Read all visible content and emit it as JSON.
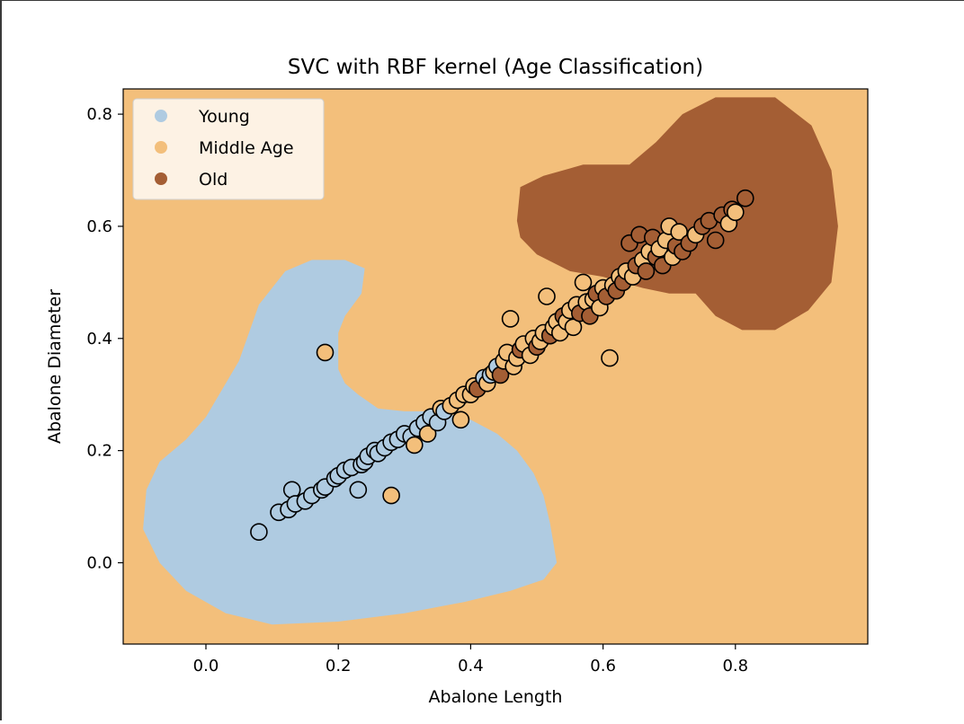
{
  "chart_data": {
    "type": "scatter",
    "title": "SVC with RBF kernel (Age Classification)",
    "xlabel": "Abalone Length",
    "ylabel": "Abalone Diameter",
    "xlim": [
      -0.125,
      1.0
    ],
    "ylim": [
      -0.145,
      0.845
    ],
    "xticks": [
      {
        "value": 0.0,
        "label": "0.0"
      },
      {
        "value": 0.2,
        "label": "0.2"
      },
      {
        "value": 0.4,
        "label": "0.4"
      },
      {
        "value": 0.6,
        "label": "0.6"
      },
      {
        "value": 0.8,
        "label": "0.8"
      }
    ],
    "yticks": [
      {
        "value": 0.0,
        "label": "0.0"
      },
      {
        "value": 0.2,
        "label": "0.2"
      },
      {
        "value": 0.4,
        "label": "0.4"
      },
      {
        "value": 0.6,
        "label": "0.6"
      },
      {
        "value": 0.8,
        "label": "0.8"
      }
    ],
    "grid": false,
    "legend_position": "top-left",
    "classes": [
      {
        "name": "Young",
        "color": "#afcbe1"
      },
      {
        "name": "Middle Age",
        "color": "#f3bf7b"
      },
      {
        "name": "Old",
        "color": "#a45e34"
      }
    ],
    "background_region_color": "#f3bf7b",
    "decision_regions": [
      {
        "class": "Young",
        "color": "#afcbe1",
        "polygon": [
          [
            -0.09,
            0.13
          ],
          [
            -0.07,
            0.18
          ],
          [
            -0.03,
            0.22
          ],
          [
            0.0,
            0.26
          ],
          [
            0.02,
            0.3
          ],
          [
            0.05,
            0.36
          ],
          [
            0.08,
            0.46
          ],
          [
            0.12,
            0.52
          ],
          [
            0.16,
            0.54
          ],
          [
            0.21,
            0.54
          ],
          [
            0.24,
            0.525
          ],
          [
            0.235,
            0.48
          ],
          [
            0.21,
            0.44
          ],
          [
            0.2,
            0.41
          ],
          [
            0.2,
            0.345
          ],
          [
            0.21,
            0.32
          ],
          [
            0.23,
            0.3
          ],
          [
            0.26,
            0.275
          ],
          [
            0.3,
            0.27
          ],
          [
            0.35,
            0.27
          ],
          [
            0.4,
            0.255
          ],
          [
            0.44,
            0.23
          ],
          [
            0.47,
            0.2
          ],
          [
            0.495,
            0.16
          ],
          [
            0.51,
            0.12
          ],
          [
            0.52,
            0.07
          ],
          [
            0.53,
            0.0
          ],
          [
            0.51,
            -0.03
          ],
          [
            0.46,
            -0.05
          ],
          [
            0.39,
            -0.07
          ],
          [
            0.3,
            -0.09
          ],
          [
            0.2,
            -0.105
          ],
          [
            0.1,
            -0.11
          ],
          [
            0.03,
            -0.09
          ],
          [
            -0.03,
            -0.05
          ],
          [
            -0.07,
            0.0
          ],
          [
            -0.095,
            0.06
          ]
        ]
      },
      {
        "class": "Old",
        "color": "#a45e34",
        "polygon": [
          [
            0.47,
            0.61
          ],
          [
            0.475,
            0.67
          ],
          [
            0.51,
            0.69
          ],
          [
            0.57,
            0.71
          ],
          [
            0.64,
            0.71
          ],
          [
            0.68,
            0.75
          ],
          [
            0.72,
            0.8
          ],
          [
            0.77,
            0.83
          ],
          [
            0.86,
            0.83
          ],
          [
            0.915,
            0.78
          ],
          [
            0.945,
            0.7
          ],
          [
            0.955,
            0.6
          ],
          [
            0.945,
            0.5
          ],
          [
            0.91,
            0.45
          ],
          [
            0.86,
            0.415
          ],
          [
            0.81,
            0.415
          ],
          [
            0.77,
            0.44
          ],
          [
            0.74,
            0.48
          ],
          [
            0.7,
            0.48
          ],
          [
            0.66,
            0.49
          ],
          [
            0.6,
            0.51
          ],
          [
            0.55,
            0.52
          ],
          [
            0.5,
            0.55
          ],
          [
            0.475,
            0.58
          ]
        ]
      }
    ],
    "points": [
      {
        "x": 0.08,
        "y": 0.055,
        "class": "Young"
      },
      {
        "x": 0.11,
        "y": 0.09,
        "class": "Young"
      },
      {
        "x": 0.125,
        "y": 0.095,
        "class": "Young"
      },
      {
        "x": 0.13,
        "y": 0.13,
        "class": "Young"
      },
      {
        "x": 0.135,
        "y": 0.105,
        "class": "Young"
      },
      {
        "x": 0.15,
        "y": 0.11,
        "class": "Young"
      },
      {
        "x": 0.16,
        "y": 0.12,
        "class": "Young"
      },
      {
        "x": 0.175,
        "y": 0.13,
        "class": "Young"
      },
      {
        "x": 0.18,
        "y": 0.375,
        "class": "Middle Age"
      },
      {
        "x": 0.18,
        "y": 0.135,
        "class": "Young"
      },
      {
        "x": 0.195,
        "y": 0.15,
        "class": "Young"
      },
      {
        "x": 0.2,
        "y": 0.155,
        "class": "Young"
      },
      {
        "x": 0.21,
        "y": 0.165,
        "class": "Young"
      },
      {
        "x": 0.22,
        "y": 0.17,
        "class": "Young"
      },
      {
        "x": 0.23,
        "y": 0.13,
        "class": "Young"
      },
      {
        "x": 0.235,
        "y": 0.175,
        "class": "Young"
      },
      {
        "x": 0.24,
        "y": 0.18,
        "class": "Young"
      },
      {
        "x": 0.245,
        "y": 0.19,
        "class": "Young"
      },
      {
        "x": 0.255,
        "y": 0.2,
        "class": "Young"
      },
      {
        "x": 0.26,
        "y": 0.195,
        "class": "Young"
      },
      {
        "x": 0.27,
        "y": 0.205,
        "class": "Young"
      },
      {
        "x": 0.28,
        "y": 0.12,
        "class": "Middle Age"
      },
      {
        "x": 0.28,
        "y": 0.215,
        "class": "Young"
      },
      {
        "x": 0.29,
        "y": 0.22,
        "class": "Young"
      },
      {
        "x": 0.3,
        "y": 0.23,
        "class": "Young"
      },
      {
        "x": 0.31,
        "y": 0.225,
        "class": "Young"
      },
      {
        "x": 0.315,
        "y": 0.21,
        "class": "Middle Age"
      },
      {
        "x": 0.32,
        "y": 0.24,
        "class": "Young"
      },
      {
        "x": 0.33,
        "y": 0.25,
        "class": "Young"
      },
      {
        "x": 0.335,
        "y": 0.23,
        "class": "Middle Age"
      },
      {
        "x": 0.34,
        "y": 0.26,
        "class": "Young"
      },
      {
        "x": 0.35,
        "y": 0.25,
        "class": "Young"
      },
      {
        "x": 0.355,
        "y": 0.275,
        "class": "Middle Age"
      },
      {
        "x": 0.36,
        "y": 0.27,
        "class": "Young"
      },
      {
        "x": 0.37,
        "y": 0.28,
        "class": "Middle Age"
      },
      {
        "x": 0.38,
        "y": 0.29,
        "class": "Middle Age"
      },
      {
        "x": 0.385,
        "y": 0.255,
        "class": "Middle Age"
      },
      {
        "x": 0.39,
        "y": 0.3,
        "class": "Middle Age"
      },
      {
        "x": 0.4,
        "y": 0.3,
        "class": "Middle Age"
      },
      {
        "x": 0.405,
        "y": 0.315,
        "class": "Middle Age"
      },
      {
        "x": 0.41,
        "y": 0.31,
        "class": "Old"
      },
      {
        "x": 0.42,
        "y": 0.33,
        "class": "Young"
      },
      {
        "x": 0.425,
        "y": 0.32,
        "class": "Middle Age"
      },
      {
        "x": 0.43,
        "y": 0.335,
        "class": "Young"
      },
      {
        "x": 0.435,
        "y": 0.34,
        "class": "Middle Age"
      },
      {
        "x": 0.44,
        "y": 0.35,
        "class": "Young"
      },
      {
        "x": 0.445,
        "y": 0.335,
        "class": "Old"
      },
      {
        "x": 0.45,
        "y": 0.36,
        "class": "Middle Age"
      },
      {
        "x": 0.455,
        "y": 0.375,
        "class": "Middle Age"
      },
      {
        "x": 0.46,
        "y": 0.435,
        "class": "Middle Age"
      },
      {
        "x": 0.465,
        "y": 0.35,
        "class": "Middle Age"
      },
      {
        "x": 0.47,
        "y": 0.365,
        "class": "Middle Age"
      },
      {
        "x": 0.475,
        "y": 0.38,
        "class": "Old"
      },
      {
        "x": 0.48,
        "y": 0.39,
        "class": "Middle Age"
      },
      {
        "x": 0.49,
        "y": 0.37,
        "class": "Middle Age"
      },
      {
        "x": 0.495,
        "y": 0.4,
        "class": "Middle Age"
      },
      {
        "x": 0.5,
        "y": 0.385,
        "class": "Old"
      },
      {
        "x": 0.505,
        "y": 0.395,
        "class": "Middle Age"
      },
      {
        "x": 0.51,
        "y": 0.41,
        "class": "Middle Age"
      },
      {
        "x": 0.515,
        "y": 0.475,
        "class": "Middle Age"
      },
      {
        "x": 0.52,
        "y": 0.405,
        "class": "Old"
      },
      {
        "x": 0.525,
        "y": 0.42,
        "class": "Middle Age"
      },
      {
        "x": 0.53,
        "y": 0.43,
        "class": "Middle Age"
      },
      {
        "x": 0.535,
        "y": 0.41,
        "class": "Middle Age"
      },
      {
        "x": 0.54,
        "y": 0.44,
        "class": "Old"
      },
      {
        "x": 0.545,
        "y": 0.43,
        "class": "Middle Age"
      },
      {
        "x": 0.55,
        "y": 0.45,
        "class": "Middle Age"
      },
      {
        "x": 0.555,
        "y": 0.42,
        "class": "Middle Age"
      },
      {
        "x": 0.56,
        "y": 0.46,
        "class": "Middle Age"
      },
      {
        "x": 0.565,
        "y": 0.445,
        "class": "Old"
      },
      {
        "x": 0.57,
        "y": 0.5,
        "class": "Middle Age"
      },
      {
        "x": 0.575,
        "y": 0.465,
        "class": "Middle Age"
      },
      {
        "x": 0.58,
        "y": 0.44,
        "class": "Old"
      },
      {
        "x": 0.585,
        "y": 0.47,
        "class": "Middle Age"
      },
      {
        "x": 0.59,
        "y": 0.48,
        "class": "Old"
      },
      {
        "x": 0.595,
        "y": 0.455,
        "class": "Middle Age"
      },
      {
        "x": 0.6,
        "y": 0.49,
        "class": "Middle Age"
      },
      {
        "x": 0.605,
        "y": 0.475,
        "class": "Old"
      },
      {
        "x": 0.61,
        "y": 0.365,
        "class": "Middle Age"
      },
      {
        "x": 0.615,
        "y": 0.495,
        "class": "Middle Age"
      },
      {
        "x": 0.62,
        "y": 0.485,
        "class": "Old"
      },
      {
        "x": 0.625,
        "y": 0.51,
        "class": "Middle Age"
      },
      {
        "x": 0.63,
        "y": 0.5,
        "class": "Old"
      },
      {
        "x": 0.635,
        "y": 0.52,
        "class": "Middle Age"
      },
      {
        "x": 0.64,
        "y": 0.57,
        "class": "Old"
      },
      {
        "x": 0.645,
        "y": 0.51,
        "class": "Middle Age"
      },
      {
        "x": 0.65,
        "y": 0.53,
        "class": "Old"
      },
      {
        "x": 0.655,
        "y": 0.585,
        "class": "Old"
      },
      {
        "x": 0.66,
        "y": 0.54,
        "class": "Middle Age"
      },
      {
        "x": 0.665,
        "y": 0.52,
        "class": "Old"
      },
      {
        "x": 0.67,
        "y": 0.555,
        "class": "Middle Age"
      },
      {
        "x": 0.675,
        "y": 0.58,
        "class": "Old"
      },
      {
        "x": 0.68,
        "y": 0.545,
        "class": "Old"
      },
      {
        "x": 0.685,
        "y": 0.56,
        "class": "Middle Age"
      },
      {
        "x": 0.69,
        "y": 0.53,
        "class": "Old"
      },
      {
        "x": 0.695,
        "y": 0.575,
        "class": "Middle Age"
      },
      {
        "x": 0.7,
        "y": 0.6,
        "class": "Middle Age"
      },
      {
        "x": 0.705,
        "y": 0.545,
        "class": "Middle Age"
      },
      {
        "x": 0.71,
        "y": 0.565,
        "class": "Old"
      },
      {
        "x": 0.715,
        "y": 0.59,
        "class": "Middle Age"
      },
      {
        "x": 0.72,
        "y": 0.555,
        "class": "Old"
      },
      {
        "x": 0.73,
        "y": 0.57,
        "class": "Old"
      },
      {
        "x": 0.74,
        "y": 0.585,
        "class": "Middle Age"
      },
      {
        "x": 0.75,
        "y": 0.6,
        "class": "Old"
      },
      {
        "x": 0.76,
        "y": 0.61,
        "class": "Old"
      },
      {
        "x": 0.77,
        "y": 0.575,
        "class": "Old"
      },
      {
        "x": 0.78,
        "y": 0.62,
        "class": "Old"
      },
      {
        "x": 0.79,
        "y": 0.605,
        "class": "Middle Age"
      },
      {
        "x": 0.795,
        "y": 0.63,
        "class": "Old"
      },
      {
        "x": 0.8,
        "y": 0.625,
        "class": "Middle Age"
      },
      {
        "x": 0.815,
        "y": 0.65,
        "class": "Old"
      }
    ]
  }
}
